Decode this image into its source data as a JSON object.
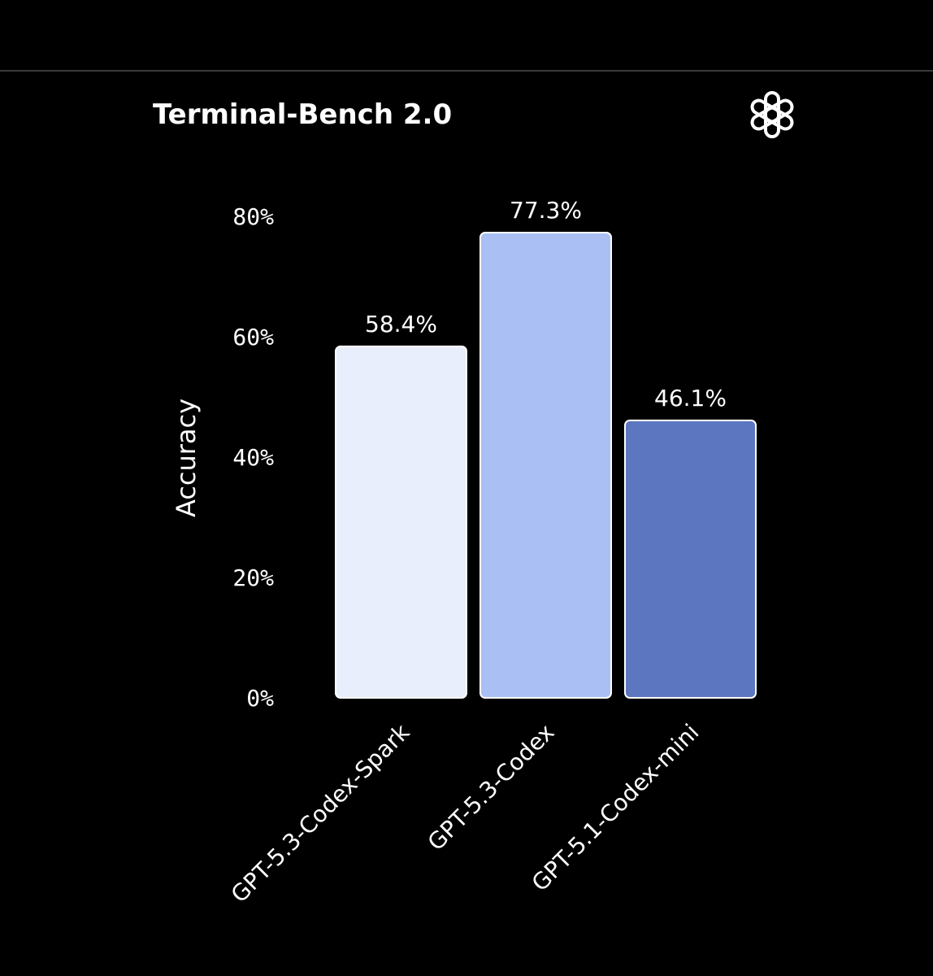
{
  "chart_data": {
    "type": "bar",
    "title": "Terminal-Bench 2.0",
    "ylabel": "Accuracy",
    "xlabel": "",
    "categories": [
      "GPT-5.3-Codex-Spark",
      "GPT-5.3-Codex",
      "GPT-5.1-Codex-mini"
    ],
    "values": [
      58.4,
      77.3,
      46.1
    ],
    "value_labels": [
      "58.4%",
      "77.3%",
      "46.1%"
    ],
    "bar_colors": [
      "#e8eefb",
      "#aabff3",
      "#5c76c0"
    ],
    "ylim": [
      0,
      80
    ],
    "y_ticks": [
      0,
      20,
      40,
      60,
      80
    ],
    "y_tick_labels": [
      "0%",
      "20%",
      "40%",
      "60%",
      "80%"
    ],
    "grid": false,
    "legend": "none"
  },
  "logo": {
    "icon": "openai-logo-icon"
  },
  "colors": {
    "background": "#000000",
    "text": "#ffffff",
    "bar_outline": "#ffffff",
    "divider": "#3a3a3a"
  }
}
